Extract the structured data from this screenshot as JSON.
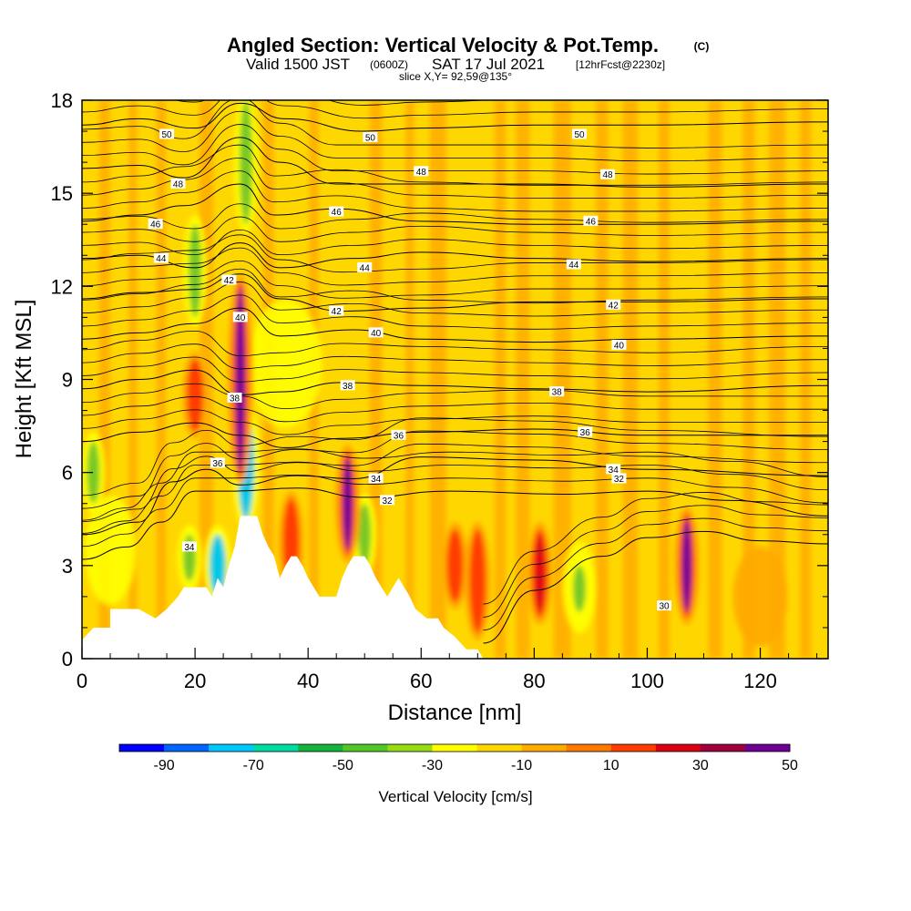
{
  "title": {
    "main": "Angled Section: Vertical Velocity & Pot.Temp.",
    "main_tag": "(C)",
    "valid_a": "Valid 1500 JST",
    "valid_zulu": "(0600Z)",
    "valid_b": "SAT 17 Jul 2021",
    "forecast": "[12hrFcst@2230z]",
    "slice": "slice X,Y= 92,59@135°"
  },
  "chart_data": {
    "type": "heatmap",
    "xlabel": "Distance [nm]",
    "ylabel": "Height [Kft MSL]",
    "xlim": [
      0,
      132
    ],
    "ylim": [
      0,
      18
    ],
    "xticks": [
      0,
      20,
      40,
      60,
      80,
      100,
      120
    ],
    "yticks": [
      0,
      3,
      6,
      9,
      12,
      15,
      18
    ],
    "grid": false,
    "colorbar": {
      "title": "Vertical Velocity [cm/s]",
      "ticks": [
        -90,
        -70,
        -50,
        -30,
        -10,
        10,
        30,
        50
      ],
      "colors": [
        "#0000ff",
        "#0064ff",
        "#00c8ff",
        "#00dca0",
        "#14b43c",
        "#50c828",
        "#96dc14",
        "#ffff00",
        "#ffd700",
        "#ffaa00",
        "#ff7800",
        "#ff3c00",
        "#dc0014",
        "#a0003c",
        "#6e0096"
      ]
    },
    "fill_colors": {
      "background": "#ffd700",
      "orange": "#ffaa00",
      "yellow": "#ffff00",
      "red": "#ff3c00",
      "crimson": "#dc0014",
      "purple": "#6e0096",
      "green": "#78c828",
      "cyan": "#00c8e6",
      "terrain": "#ffffff"
    },
    "updrafts": [
      {
        "x": 28,
        "y_bottom": 6,
        "y_top": 12,
        "value": 60
      },
      {
        "x": 47,
        "y_bottom": 3.5,
        "y_top": 6.5,
        "value": 60
      },
      {
        "x": 81,
        "y_bottom": 1.5,
        "y_top": 4,
        "value": 50
      },
      {
        "x": 107,
        "y_bottom": 1.5,
        "y_top": 4.5,
        "value": 60
      },
      {
        "x": 70,
        "y_bottom": 1,
        "y_top": 4,
        "value": 30
      },
      {
        "x": 66,
        "y_bottom": 2,
        "y_top": 4,
        "value": 30
      },
      {
        "x": 20,
        "y_bottom": 7.5,
        "y_top": 9.5,
        "value": 30
      },
      {
        "x": 37,
        "y_bottom": 2.5,
        "y_top": 5,
        "value": 30
      }
    ],
    "downdrafts": [
      {
        "x": 29,
        "y_bottom": 4.5,
        "y_top": 8,
        "value": -60
      },
      {
        "x": 24,
        "y_bottom": 2,
        "y_top": 4,
        "value": -50
      },
      {
        "x": 19,
        "y_bottom": 2.5,
        "y_top": 4,
        "value": -40
      },
      {
        "x": 29,
        "y_bottom": 14,
        "y_top": 18,
        "value": -30
      },
      {
        "x": 20,
        "y_bottom": 11,
        "y_top": 14,
        "value": -20
      },
      {
        "x": 88,
        "y_bottom": 1.5,
        "y_top": 3,
        "value": -20
      },
      {
        "x": 50,
        "y_bottom": 3,
        "y_top": 5,
        "value": -30
      },
      {
        "x": 2,
        "y_bottom": 5,
        "y_top": 7,
        "value": -20
      }
    ],
    "terrain": [
      [
        0,
        0.6
      ],
      [
        2,
        1
      ],
      [
        5,
        1
      ],
      [
        5,
        1.6
      ],
      [
        10,
        1.6
      ],
      [
        13,
        1.3
      ],
      [
        15,
        1.6
      ],
      [
        16,
        1.8
      ],
      [
        17,
        2
      ],
      [
        18,
        2.3
      ],
      [
        22,
        2.3
      ],
      [
        23,
        2
      ],
      [
        24,
        2.6
      ],
      [
        25,
        2.3
      ],
      [
        26,
        3
      ],
      [
        27,
        3.6
      ],
      [
        28,
        4.6
      ],
      [
        31,
        4.6
      ],
      [
        32,
        4
      ],
      [
        33,
        3.6
      ],
      [
        34,
        3.3
      ],
      [
        35,
        2.6
      ],
      [
        36,
        3
      ],
      [
        37,
        3.3
      ],
      [
        38,
        3.3
      ],
      [
        39,
        3
      ],
      [
        40,
        2.6
      ],
      [
        41,
        2.3
      ],
      [
        42,
        2
      ],
      [
        45,
        2
      ],
      [
        46,
        2.6
      ],
      [
        47,
        3
      ],
      [
        48,
        3.3
      ],
      [
        50,
        3.3
      ],
      [
        51,
        3
      ],
      [
        52,
        2.6
      ],
      [
        53,
        2.3
      ],
      [
        54,
        2
      ],
      [
        55,
        2.3
      ],
      [
        56,
        2.6
      ],
      [
        57,
        2.3
      ],
      [
        58,
        2
      ],
      [
        59,
        1.6
      ],
      [
        61,
        1.3
      ],
      [
        63,
        1.3
      ],
      [
        64,
        1
      ],
      [
        66,
        0.7
      ],
      [
        68,
        0.3
      ],
      [
        70,
        0.3
      ],
      [
        71,
        0
      ],
      [
        132,
        0
      ]
    ],
    "contours": [
      {
        "theta": 50,
        "points": [
          [
            0,
            17.2
          ],
          [
            10,
            17.4
          ],
          [
            20,
            17.1
          ],
          [
            28,
            17.9
          ],
          [
            36,
            17.4
          ],
          [
            50,
            17
          ],
          [
            60,
            17.1
          ],
          [
            80,
            17.2
          ],
          [
            100,
            17.2
          ],
          [
            132,
            17.3
          ]
        ]
      },
      {
        "theta": 48,
        "points": [
          [
            0,
            15.8
          ],
          [
            10,
            15.9
          ],
          [
            18,
            15.5
          ],
          [
            28,
            16.8
          ],
          [
            35,
            16
          ],
          [
            45,
            15.3
          ],
          [
            60,
            15.3
          ],
          [
            80,
            15.3
          ],
          [
            100,
            15.2
          ],
          [
            132,
            15.3
          ]
        ]
      },
      {
        "theta": 46,
        "points": [
          [
            0,
            14.1
          ],
          [
            10,
            14.3
          ],
          [
            18,
            14.6
          ],
          [
            28,
            15.3
          ],
          [
            34,
            14.3
          ],
          [
            45,
            14.5
          ],
          [
            60,
            14.1
          ],
          [
            80,
            14
          ],
          [
            100,
            14
          ],
          [
            132,
            14.1
          ]
        ]
      },
      {
        "theta": 44,
        "points": [
          [
            0,
            12.9
          ],
          [
            10,
            13
          ],
          [
            20,
            12.6
          ],
          [
            28,
            13.4
          ],
          [
            35,
            12.6
          ],
          [
            48,
            12.9
          ],
          [
            60,
            13.1
          ],
          [
            80,
            12.9
          ],
          [
            100,
            12.8
          ],
          [
            132,
            12.9
          ]
        ]
      },
      {
        "theta": 42,
        "points": [
          [
            0,
            11.6
          ],
          [
            10,
            11.8
          ],
          [
            20,
            11.9
          ],
          [
            28,
            12.4
          ],
          [
            35,
            11.6
          ],
          [
            46,
            11.2
          ],
          [
            60,
            11.3
          ],
          [
            80,
            11.5
          ],
          [
            100,
            11.5
          ],
          [
            132,
            11.6
          ]
        ]
      },
      {
        "theta": 40,
        "points": [
          [
            0,
            10.3
          ],
          [
            10,
            10.5
          ],
          [
            20,
            10.8
          ],
          [
            28,
            11.3
          ],
          [
            35,
            10.4
          ],
          [
            48,
            10.6
          ],
          [
            60,
            10.3
          ],
          [
            80,
            10.2
          ],
          [
            100,
            10.3
          ],
          [
            132,
            10.4
          ]
        ]
      },
      {
        "theta": 38,
        "points": [
          [
            0,
            8.7
          ],
          [
            10,
            9
          ],
          [
            20,
            9.3
          ],
          [
            28,
            8.5
          ],
          [
            35,
            8.6
          ],
          [
            46,
            8.9
          ],
          [
            60,
            8.8
          ],
          [
            80,
            8.7
          ],
          [
            100,
            8.6
          ],
          [
            132,
            8.8
          ]
        ]
      },
      {
        "theta": 36,
        "points": [
          [
            0,
            7
          ],
          [
            10,
            7.3
          ],
          [
            20,
            7.6
          ],
          [
            28,
            7.2
          ],
          [
            36,
            6.8
          ],
          [
            46,
            7.1
          ],
          [
            60,
            7.3
          ],
          [
            80,
            7.4
          ],
          [
            100,
            7.2
          ],
          [
            132,
            7.2
          ]
        ]
      },
      {
        "theta": 34,
        "points": [
          [
            0,
            4
          ],
          [
            10,
            4.4
          ],
          [
            16,
            5.7
          ],
          [
            22,
            6.1
          ],
          [
            28,
            5.6
          ],
          [
            38,
            5.9
          ],
          [
            48,
            5.8
          ],
          [
            60,
            6.5
          ],
          [
            80,
            6.4
          ],
          [
            100,
            6.1
          ],
          [
            132,
            5.9
          ]
        ]
      },
      {
        "theta": 32,
        "points": [
          [
            0,
            3.2
          ],
          [
            8,
            3.6
          ],
          [
            14,
            4.4
          ],
          [
            20,
            5.4
          ],
          [
            27,
            5.4
          ],
          [
            38,
            5.5
          ],
          [
            50,
            5.2
          ],
          [
            65,
            5.4
          ],
          [
            85,
            5.3
          ],
          [
            100,
            5.4
          ],
          [
            115,
            5.1
          ],
          [
            132,
            4.6
          ]
        ]
      },
      {
        "theta": 30,
        "points": [
          [
            71,
            0.5
          ],
          [
            80,
            2.2
          ],
          [
            92,
            3.3
          ],
          [
            100,
            3.9
          ],
          [
            110,
            4.1
          ],
          [
            120,
            3.8
          ],
          [
            132,
            3.7
          ]
        ]
      }
    ],
    "contour_labels": [
      {
        "text": "50",
        "x": 15,
        "y": 16.9
      },
      {
        "text": "50",
        "x": 51,
        "y": 16.8
      },
      {
        "text": "50",
        "x": 88,
        "y": 16.9
      },
      {
        "text": "48",
        "x": 17,
        "y": 15.3
      },
      {
        "text": "48",
        "x": 60,
        "y": 15.7
      },
      {
        "text": "48",
        "x": 93,
        "y": 15.6
      },
      {
        "text": "46",
        "x": 13,
        "y": 14
      },
      {
        "text": "46",
        "x": 45,
        "y": 14.4
      },
      {
        "text": "46",
        "x": 90,
        "y": 14.1
      },
      {
        "text": "44",
        "x": 14,
        "y": 12.9
      },
      {
        "text": "44",
        "x": 50,
        "y": 12.6
      },
      {
        "text": "44",
        "x": 87,
        "y": 12.7
      },
      {
        "text": "42",
        "x": 26,
        "y": 12.2
      },
      {
        "text": "42",
        "x": 45,
        "y": 11.2
      },
      {
        "text": "42",
        "x": 94,
        "y": 11.4
      },
      {
        "text": "40",
        "x": 28,
        "y": 11
      },
      {
        "text": "40",
        "x": 52,
        "y": 10.5
      },
      {
        "text": "40",
        "x": 95,
        "y": 10.1
      },
      {
        "text": "38",
        "x": 27,
        "y": 8.4
      },
      {
        "text": "38",
        "x": 47,
        "y": 8.8
      },
      {
        "text": "38",
        "x": 84,
        "y": 8.6
      },
      {
        "text": "36",
        "x": 24,
        "y": 6.3
      },
      {
        "text": "36",
        "x": 56,
        "y": 7.2
      },
      {
        "text": "36",
        "x": 89,
        "y": 7.3
      },
      {
        "text": "34",
        "x": 19,
        "y": 3.6
      },
      {
        "text": "34",
        "x": 52,
        "y": 5.8
      },
      {
        "text": "34",
        "x": 94,
        "y": 6.1
      },
      {
        "text": "32",
        "x": 54,
        "y": 5.1
      },
      {
        "text": "32",
        "x": 95,
        "y": 5.8
      },
      {
        "text": "30",
        "x": 103,
        "y": 1.7
      }
    ]
  }
}
